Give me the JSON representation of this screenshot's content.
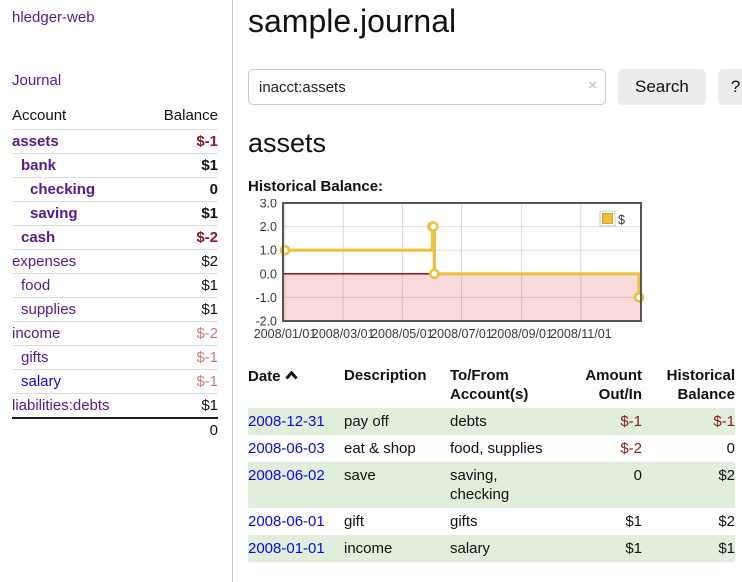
{
  "colors": {
    "purple": "#551a8b",
    "blue": "#0b0bdd",
    "neg_strong": "#8e1a21",
    "neg_soft": "#c47b7b",
    "green": "#e0eedb",
    "chart_yellow": "#edc240",
    "chart_yellow_edge": "#cfa52c",
    "pink_region": "#f9d9d9",
    "zero_line": "#8b0000",
    "grid_line": "#d9d9d9",
    "plot_border": "#545454"
  },
  "app": {
    "title": "hledger-web"
  },
  "sidebar": {
    "journal_link": "Journal",
    "table": {
      "account_header": "Account",
      "balance_header": "Balance",
      "rows": [
        {
          "name": "assets",
          "level": 1,
          "bold": true,
          "balance": "$-1",
          "balance_style": "neg-strong",
          "link": "purple"
        },
        {
          "name": "bank",
          "level": 2,
          "bold": true,
          "balance": "$1",
          "balance_style": "pos",
          "link": "purple"
        },
        {
          "name": "checking",
          "level": 3,
          "bold": true,
          "balance": "0",
          "balance_style": "pos",
          "link": "purple"
        },
        {
          "name": "saving",
          "level": 3,
          "bold": true,
          "balance": "$1",
          "balance_style": "pos",
          "link": "purple"
        },
        {
          "name": "cash",
          "level": 2,
          "bold": true,
          "balance": "$-2",
          "balance_style": "neg-strong",
          "link": "purple"
        },
        {
          "name": "expenses",
          "level": 1,
          "bold": false,
          "balance": "$2",
          "balance_style": "pos",
          "link": "purple"
        },
        {
          "name": "food",
          "level": 2,
          "bold": false,
          "balance": "$1",
          "balance_style": "pos",
          "link": "purple"
        },
        {
          "name": "supplies",
          "level": 2,
          "bold": false,
          "balance": "$1",
          "balance_style": "pos",
          "link": "purple"
        },
        {
          "name": "income",
          "level": 1,
          "bold": false,
          "balance": "$-2",
          "balance_style": "neg-soft",
          "link": "purple"
        },
        {
          "name": "gifts",
          "level": 2,
          "bold": false,
          "balance": "$-1",
          "balance_style": "neg-soft",
          "link": "purple"
        },
        {
          "name": "salary",
          "level": 2,
          "bold": false,
          "balance": "$-1",
          "balance_style": "neg-soft",
          "link": "blue"
        },
        {
          "name": "liabilities:debts",
          "level": 1,
          "bold": false,
          "balance": "$1",
          "balance_style": "pos",
          "link": "purple"
        }
      ],
      "total": "0"
    }
  },
  "main": {
    "title": "sample.journal",
    "search": {
      "value": "inacct:assets",
      "clear_icon": "×",
      "button_label": "Search",
      "help_label": "?"
    },
    "account_heading": "assets",
    "chart_label": "Historical Balance:"
  },
  "chart_data": {
    "type": "line",
    "title": "Historical Balance",
    "step": true,
    "legend": [
      {
        "label": "$",
        "color": "#edc240"
      }
    ],
    "legend_position": "top-right",
    "x_range": [
      "2008-01-01",
      "2008-12-31"
    ],
    "points": [
      [
        "2008-01-01",
        1
      ],
      [
        "2008-06-01",
        2
      ],
      [
        "2008-06-02",
        2
      ],
      [
        "2008-06-03",
        0
      ],
      [
        "2008-12-31",
        -1
      ]
    ],
    "ylim": [
      -2.0,
      3.0
    ],
    "y_ticks": [
      3.0,
      2.0,
      1.0,
      0.0,
      -1.0,
      -2.0
    ],
    "y_tick_labels": [
      "3.0",
      "2.0",
      "1.0",
      "0.0",
      "-1.0",
      "-2.0"
    ],
    "x_tick_dates": [
      "2008-01-01",
      "2008-03-01",
      "2008-05-01",
      "2008-07-01",
      "2008-09-01",
      "2008-11-01"
    ],
    "x_tick_labels": [
      "2008/01/01",
      "2008/03/01",
      "2008/05/01",
      "2008/07/01",
      "2008/09/01",
      "2008/11/01"
    ],
    "grid": true,
    "negative_region": true
  },
  "register": {
    "headers": {
      "date": "Date",
      "description": "Description",
      "accounts": "To/From Account(s)",
      "amount": "Amount Out/In",
      "balance": "Historical Balance"
    },
    "sort": {
      "column": "date",
      "direction": "ascending"
    },
    "rows": [
      {
        "date": "2008-12-31",
        "description": "pay off",
        "accounts": "debts",
        "amount": "$-1",
        "amount_negative": true,
        "balance": "$-1",
        "balance_negative": true
      },
      {
        "date": "2008-06-03",
        "description": "eat & shop",
        "accounts": "food, supplies",
        "amount": "$-2",
        "amount_negative": true,
        "balance": "0",
        "balance_negative": false
      },
      {
        "date": "2008-06-02",
        "description": "save",
        "accounts": "saving, checking",
        "amount": "0",
        "amount_negative": false,
        "balance": "$2",
        "balance_negative": false
      },
      {
        "date": "2008-06-01",
        "description": "gift",
        "accounts": "gifts",
        "amount": "$1",
        "amount_negative": false,
        "balance": "$2",
        "balance_negative": false
      },
      {
        "date": "2008-01-01",
        "description": "income",
        "accounts": "salary",
        "amount": "$1",
        "amount_negative": false,
        "balance": "$1",
        "balance_negative": false
      }
    ]
  }
}
